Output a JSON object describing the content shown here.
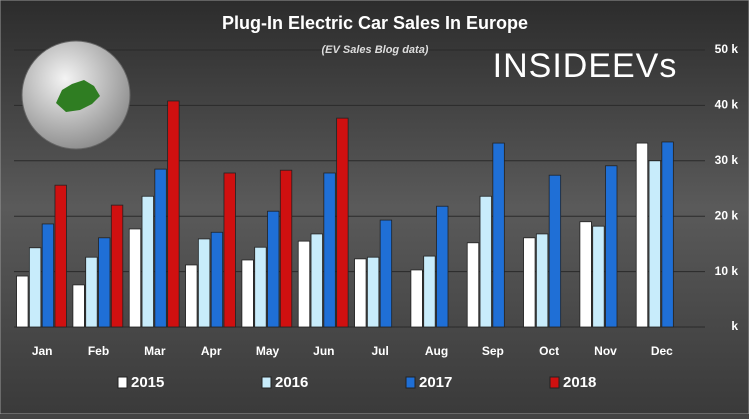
{
  "chart_data": {
    "type": "bar",
    "title": "Plug-In Electric Car Sales In Europe",
    "subtitle": "(EV Sales Blog data)",
    "logo": "INSIDEEVs",
    "categories": [
      "Jan",
      "Feb",
      "Mar",
      "Apr",
      "May",
      "Jun",
      "Jul",
      "Aug",
      "Sep",
      "Oct",
      "Nov",
      "Dec"
    ],
    "series": [
      {
        "name": "2015",
        "color": "#ffffff",
        "values": [
          9200,
          7600,
          17700,
          11200,
          12100,
          15500,
          12300,
          10300,
          15200,
          16100,
          19000,
          33200
        ]
      },
      {
        "name": "2016",
        "color": "#c8ecfb",
        "values": [
          14300,
          12600,
          23600,
          15900,
          14400,
          16800,
          12600,
          12800,
          23600,
          16800,
          18200,
          30000
        ]
      },
      {
        "name": "2017",
        "color": "#1f6fd6",
        "values": [
          18600,
          16100,
          28500,
          17100,
          20900,
          27800,
          19300,
          21800,
          33200,
          27400,
          29100,
          33400
        ]
      },
      {
        "name": "2018",
        "color": "#d01010",
        "values": [
          25600,
          22000,
          40800,
          27800,
          28300,
          37700,
          null,
          null,
          null,
          null,
          null,
          null
        ]
      }
    ],
    "ylim": [
      0,
      50000
    ],
    "yticks": [
      {
        "value": 0,
        "label": "k"
      },
      {
        "value": 10000,
        "label": "10 k"
      },
      {
        "value": 20000,
        "label": "20 k"
      },
      {
        "value": 30000,
        "label": "30 k"
      },
      {
        "value": 40000,
        "label": "40 k"
      },
      {
        "value": 50000,
        "label": "50 k"
      }
    ],
    "grid": true
  }
}
